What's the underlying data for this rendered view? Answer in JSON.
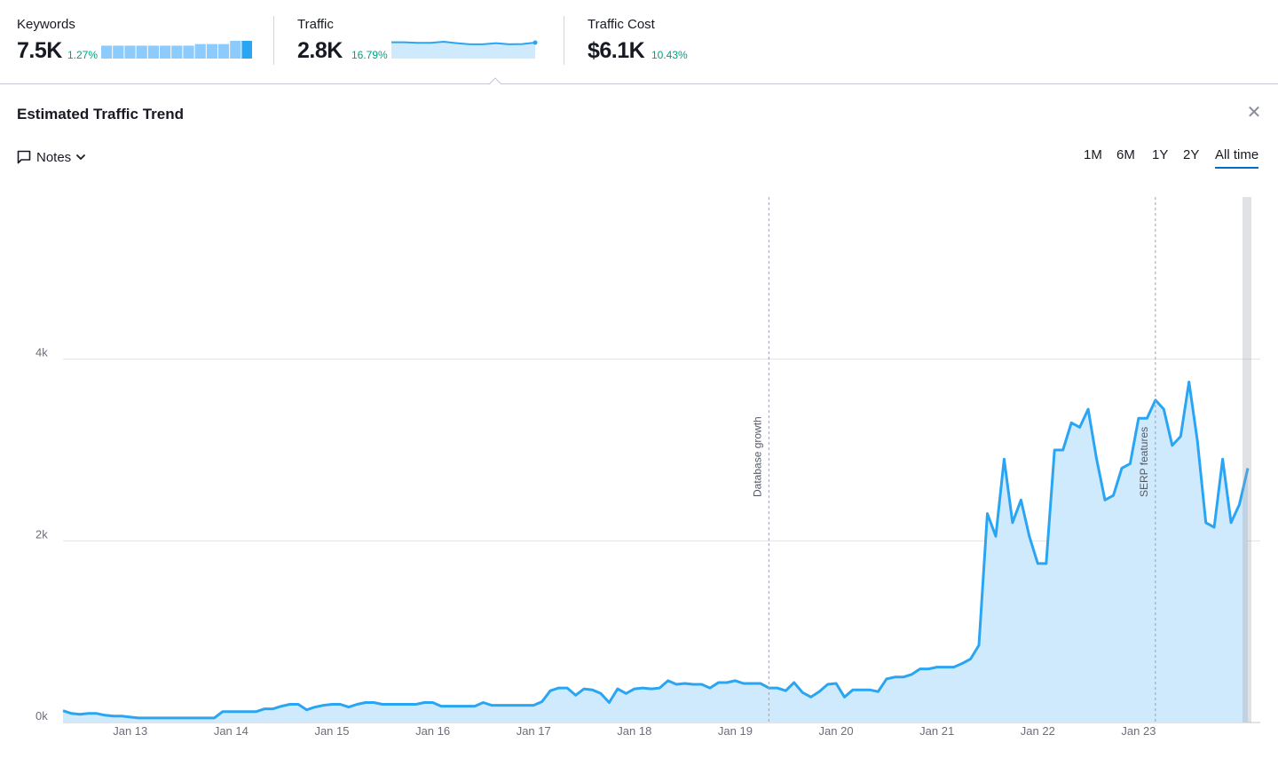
{
  "metrics": {
    "keywords": {
      "label": "Keywords",
      "value": "7.5K",
      "delta": "1.27%",
      "bars": [
        8,
        8,
        8,
        8,
        8,
        8,
        8,
        8,
        9,
        9,
        9,
        11,
        11
      ]
    },
    "traffic": {
      "label": "Traffic",
      "value": "2.8K",
      "delta": "16.79%",
      "spark": [
        10,
        10,
        9.6,
        9.6,
        10.4,
        9.4,
        8.6,
        8.6,
        9.4,
        8.6,
        8.8,
        9.8
      ]
    },
    "traffic_cost": {
      "label": "Traffic Cost",
      "value": "$6.1K",
      "delta": "10.43%"
    }
  },
  "panel": {
    "title": "Estimated Traffic Trend",
    "close_icon": "close-icon",
    "notes_label": "Notes",
    "notes_icon": "comment-icon",
    "periods": [
      "1M",
      "6M",
      "1Y",
      "2Y",
      "All time"
    ],
    "active_period": "All time"
  },
  "colors": {
    "line": "#2aa5f4",
    "fill": "#cfeafc",
    "positive": "#009f81",
    "accent": "#006dca",
    "bar_light": "#8ccbfb",
    "bar_dark": "#2aa5f4"
  },
  "chart_data": {
    "type": "area",
    "title": "",
    "xlabel": "",
    "ylabel": "",
    "x_start": "2012-05",
    "x_step": "1 month",
    "x_ticks": [
      "Jan 13",
      "Jan 14",
      "Jan 15",
      "Jan 16",
      "Jan 17",
      "Jan 18",
      "Jan 19",
      "Jan 20",
      "Jan 21",
      "Jan 22",
      "Jan 23"
    ],
    "y_ticks": [
      "0k",
      "2k",
      "4k"
    ],
    "ylim": [
      0,
      6000
    ],
    "grid": true,
    "annotations": [
      {
        "label": "Database growth",
        "x": "2019-05"
      },
      {
        "label": "SERP features",
        "x": "2023-03"
      }
    ],
    "series": [
      {
        "values": [
          130,
          100,
          90,
          100,
          100,
          80,
          70,
          70,
          60,
          50,
          50,
          50,
          50,
          50,
          50,
          50,
          50,
          50,
          50,
          120,
          120,
          120,
          120,
          120,
          150,
          150,
          180,
          200,
          200,
          140,
          170,
          190,
          200,
          200,
          170,
          200,
          220,
          220,
          200,
          200,
          200,
          200,
          200,
          220,
          220,
          180,
          180,
          180,
          180,
          180,
          220,
          190,
          190,
          190,
          190,
          190,
          190,
          230,
          350,
          380,
          380,
          300,
          370,
          360,
          320,
          220,
          370,
          320,
          370,
          380,
          370,
          380,
          460,
          420,
          430,
          420,
          420,
          380,
          440,
          440,
          460,
          430,
          430,
          430,
          380,
          380,
          350,
          440,
          330,
          280,
          340,
          420,
          430,
          280,
          360,
          360,
          360,
          340,
          480,
          500,
          500,
          530,
          590,
          590,
          610,
          610,
          610,
          650,
          700,
          850,
          2300,
          2050,
          2900,
          2200,
          2450,
          2050,
          1750,
          1750,
          3000,
          3000,
          3300,
          3250,
          3450,
          2900,
          2450,
          2500,
          2800,
          2850,
          3350,
          3350,
          3550,
          3450,
          3050,
          3150,
          3750,
          3100,
          2200,
          2150,
          2900,
          2200,
          2400,
          2800
        ]
      }
    ]
  }
}
